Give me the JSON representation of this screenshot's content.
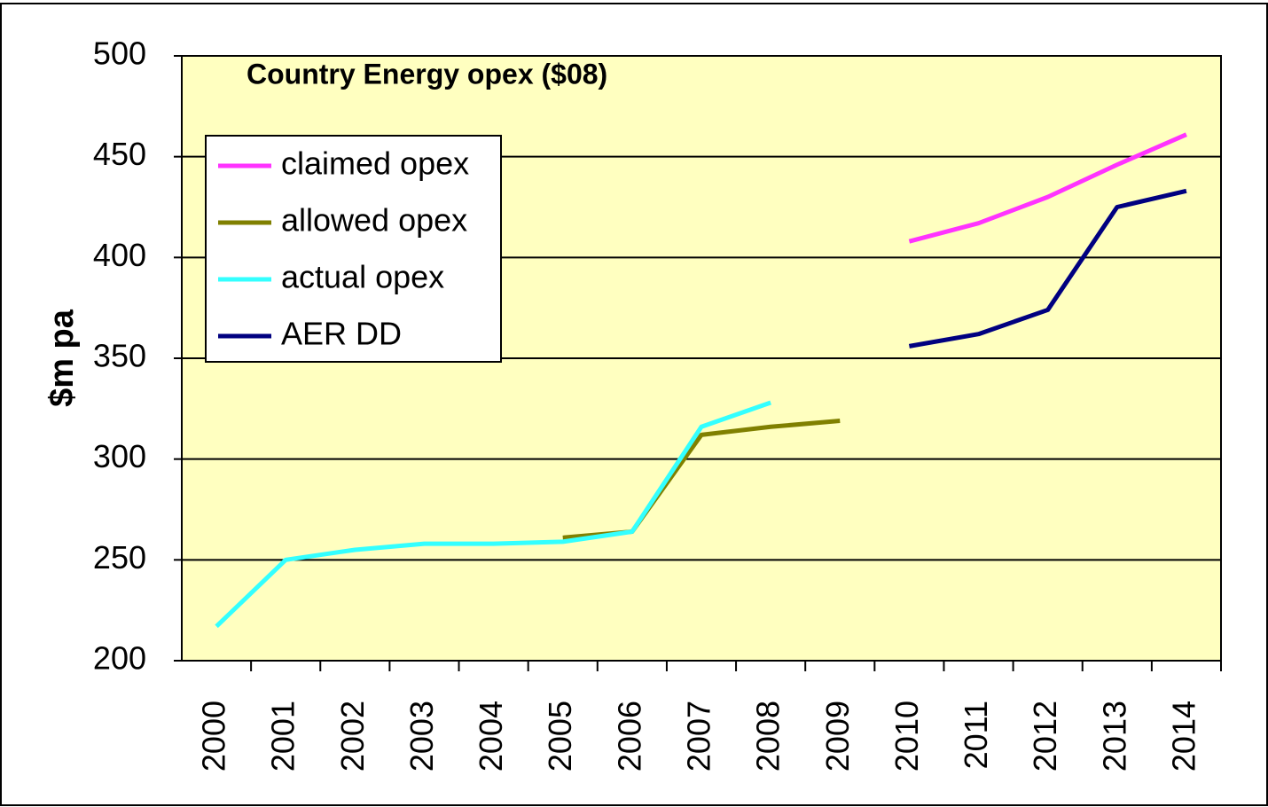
{
  "chart_data": {
    "type": "line",
    "title": "Country Energy opex ($08)",
    "y_label": "$m pa",
    "categories": [
      "2000",
      "2001",
      "2002",
      "2003",
      "2004",
      "2005",
      "2006",
      "2007",
      "2008",
      "2009",
      "2010",
      "2011",
      "2012",
      "2013",
      "2014"
    ],
    "series": [
      {
        "name": "claimed opex",
        "color": "#ff33ff",
        "values": [
          null,
          null,
          null,
          null,
          null,
          null,
          null,
          null,
          null,
          null,
          408,
          417,
          430,
          446,
          461
        ]
      },
      {
        "name": "allowed opex",
        "color": "#808000",
        "values": [
          null,
          null,
          null,
          null,
          null,
          261,
          264,
          312,
          316,
          319,
          null,
          null,
          null,
          null,
          null
        ]
      },
      {
        "name": "actual opex",
        "color": "#33ffff",
        "values": [
          217,
          250,
          255,
          258,
          258,
          259,
          264,
          316,
          328,
          null,
          null,
          null,
          null,
          null,
          null
        ]
      },
      {
        "name": "AER DD",
        "color": "#000080",
        "values": [
          null,
          null,
          null,
          null,
          null,
          null,
          null,
          null,
          null,
          null,
          356,
          362,
          374,
          425,
          433
        ]
      }
    ],
    "ylim": [
      200,
      500
    ],
    "yticks": [
      200,
      250,
      300,
      350,
      400,
      450,
      500
    ],
    "grid": true,
    "legend": "upper left"
  }
}
